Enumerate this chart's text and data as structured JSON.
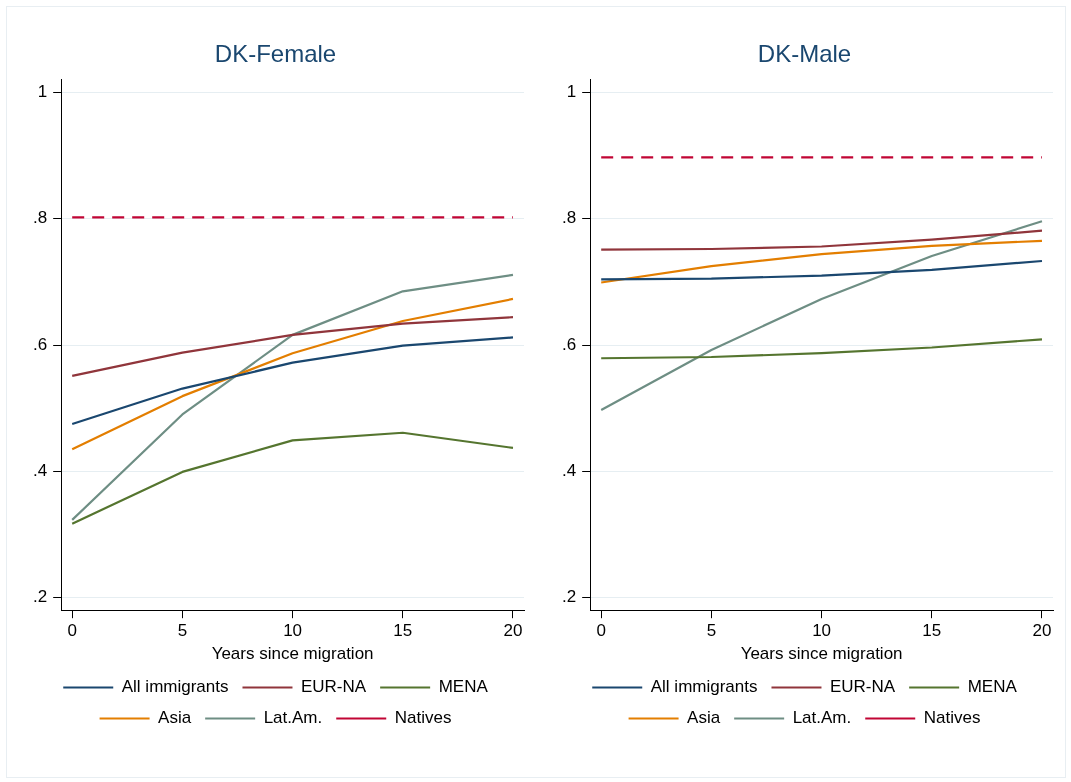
{
  "chart_data": [
    {
      "type": "line",
      "title": "DK-Female",
      "xlabel": "Years since migration",
      "x": [
        0,
        5,
        10,
        15,
        20
      ],
      "xlim": [
        -0.5,
        20.5
      ],
      "xticks": [
        0,
        5,
        10,
        15,
        20
      ],
      "ylim": [
        0.18,
        1.02
      ],
      "yticks": [
        {
          "value": 0.2,
          "label": ".2"
        },
        {
          "value": 0.4,
          "label": ".4"
        },
        {
          "value": 0.6,
          "label": ".6"
        },
        {
          "value": 0.8,
          "label": ".8"
        },
        {
          "value": 1,
          "label": "1"
        }
      ],
      "grid": "y",
      "legend": "bottom",
      "series": [
        {
          "name": "All immigrants",
          "color": "#1a476f",
          "values": [
            0.475,
            0.531,
            0.572,
            0.599,
            0.612
          ]
        },
        {
          "name": "EUR-NA",
          "color": "#90353b",
          "values": [
            0.551,
            0.588,
            0.616,
            0.634,
            0.644
          ]
        },
        {
          "name": "MENA",
          "color": "#55752f",
          "values": [
            0.317,
            0.399,
            0.449,
            0.461,
            0.437
          ]
        },
        {
          "name": "Asia",
          "color": "#e37e00",
          "values": [
            0.435,
            0.519,
            0.587,
            0.638,
            0.673
          ]
        },
        {
          "name": "Lat.Am.",
          "color": "#6e8e84",
          "values": [
            0.323,
            0.49,
            0.616,
            0.685,
            0.711
          ]
        },
        {
          "name": "Natives",
          "color": "#c10534",
          "line_style": "dashed",
          "values": [
            0.802,
            0.802,
            0.802,
            0.802,
            0.802
          ]
        }
      ]
    },
    {
      "type": "line",
      "title": "DK-Male",
      "xlabel": "Years since migration",
      "x": [
        0,
        5,
        10,
        15,
        20
      ],
      "xlim": [
        -0.5,
        20.5
      ],
      "xticks": [
        0,
        5,
        10,
        15,
        20
      ],
      "ylim": [
        0.18,
        1.02
      ],
      "yticks": [
        {
          "value": 0.2,
          "label": ".2"
        },
        {
          "value": 0.4,
          "label": ".4"
        },
        {
          "value": 0.6,
          "label": ".6"
        },
        {
          "value": 0.8,
          "label": ".8"
        },
        {
          "value": 1,
          "label": "1"
        }
      ],
      "grid": "y",
      "legend": "bottom",
      "series": [
        {
          "name": "All immigrants",
          "color": "#1a476f",
          "values": [
            0.704,
            0.705,
            0.71,
            0.719,
            0.733
          ]
        },
        {
          "name": "EUR-NA",
          "color": "#90353b",
          "values": [
            0.751,
            0.752,
            0.756,
            0.767,
            0.781
          ]
        },
        {
          "name": "MENA",
          "color": "#55752f",
          "values": [
            0.579,
            0.581,
            0.587,
            0.596,
            0.609
          ]
        },
        {
          "name": "Asia",
          "color": "#e37e00",
          "values": [
            0.699,
            0.725,
            0.744,
            0.757,
            0.765
          ]
        },
        {
          "name": "Lat.Am.",
          "color": "#6e8e84",
          "values": [
            0.497,
            0.592,
            0.673,
            0.741,
            0.796
          ]
        },
        {
          "name": "Natives",
          "color": "#c10534",
          "line_style": "dashed",
          "values": [
            0.897,
            0.897,
            0.897,
            0.897,
            0.897
          ]
        }
      ]
    }
  ]
}
